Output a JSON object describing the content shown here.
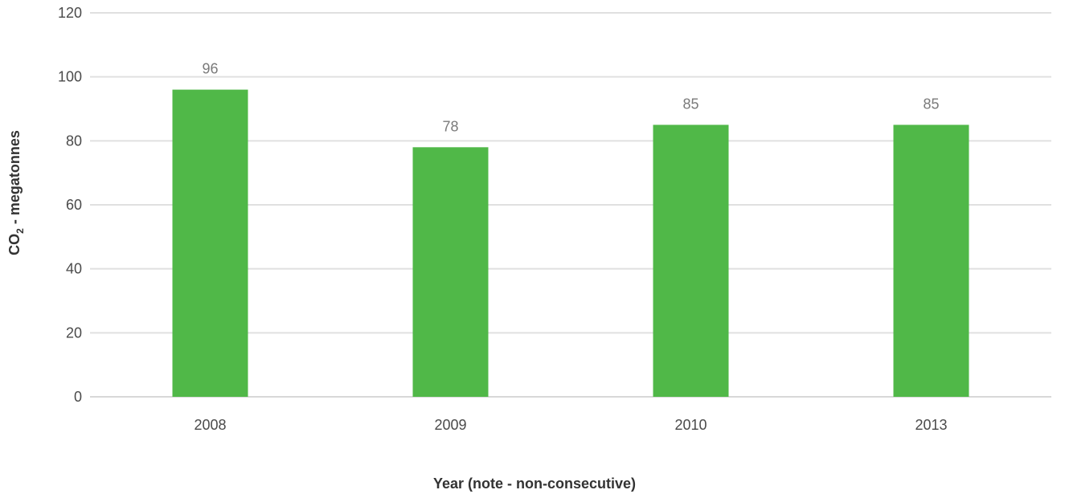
{
  "chart_data": {
    "type": "bar",
    "categories": [
      "2008",
      "2009",
      "2010",
      "2013"
    ],
    "values": [
      96,
      78,
      85,
      85
    ],
    "data_labels": [
      "96",
      "78",
      "85",
      "85"
    ],
    "xlabel": "Year (note - non-consecutive)",
    "ylabel": {
      "prefix": "CO",
      "subscript": "2",
      "suffix": " - megatonnes"
    },
    "ylim": [
      0,
      120
    ],
    "yticks": [
      0,
      20,
      40,
      60,
      80,
      100,
      120
    ],
    "grid": true,
    "legend": "none",
    "colors": {
      "bar": "#50b848",
      "grid": "#e0e0e0",
      "baseline": "#d8d8d8"
    }
  }
}
